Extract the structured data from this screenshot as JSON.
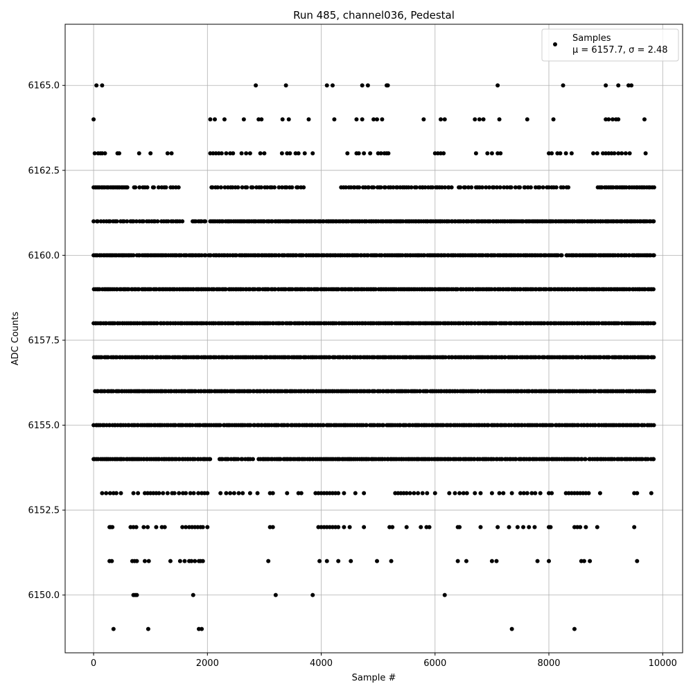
{
  "chart_data": {
    "type": "scatter",
    "title": "Run 485, channel036, Pedestal",
    "xlabel": "Sample #",
    "ylabel": "ADC Counts",
    "xlim": [
      -500,
      10350
    ],
    "ylim": [
      6148.3,
      6166.8
    ],
    "xticks": [
      0,
      2000,
      4000,
      6000,
      8000,
      10000
    ],
    "xtick_labels": [
      "0",
      "2000",
      "4000",
      "6000",
      "8000",
      "10000"
    ],
    "yticks": [
      6150.0,
      6152.5,
      6155.0,
      6157.5,
      6160.0,
      6162.5,
      6165.0
    ],
    "ytick_labels": [
      "6150.0",
      "6152.5",
      "6155.0",
      "6157.5",
      "6160.0",
      "6162.5",
      "6165.0"
    ],
    "grid": true,
    "legend_position": "top-right",
    "legend": {
      "series_name": "Samples",
      "stats_label": "μ = 6157.7, σ = 2.48"
    },
    "color": "#000000",
    "x_range": [
      0,
      9850
    ],
    "levels": [
      {
        "y": 6165,
        "x": [
          50,
          150,
          2850,
          3380,
          4100,
          4200,
          4720,
          4820,
          5150,
          5170,
          7100,
          8250,
          9000,
          9220,
          9400,
          9450
        ]
      },
      {
        "y": 6164,
        "x": [
          0,
          2050,
          2130,
          2300,
          2640,
          2900,
          2950,
          3320,
          3430,
          3780,
          4230,
          4620,
          4720,
          4920,
          4980,
          5070,
          5800,
          6100,
          6170,
          6700,
          6780,
          6850,
          7130,
          7620,
          8080,
          9000,
          9050,
          9120,
          9180,
          9220,
          9680
        ]
      },
      {
        "y": 6163,
        "x": [
          20,
          80,
          120,
          150,
          200,
          420,
          450,
          800,
          1000,
          1300,
          1370,
          2050,
          2100,
          2150,
          2200,
          2250,
          2330,
          2400,
          2450,
          2600,
          2680,
          2750,
          2930,
          3000,
          3310,
          3400,
          3450,
          3550,
          3600,
          3710,
          3850,
          4460,
          4620,
          4660,
          4750,
          4860,
          5000,
          5050,
          5110,
          5150,
          5180,
          6000,
          6050,
          6100,
          6150,
          6720,
          6920,
          7000,
          7100,
          7150,
          8000,
          8050,
          8150,
          8200,
          8300,
          8400,
          8780,
          8850,
          8950,
          9000,
          9050,
          9100,
          9150,
          9220,
          9280,
          9350,
          9420,
          9700
        ]
      },
      {
        "y": 6162,
        "seq": [
          [
            0,
            600,
            28
          ],
          [
            700,
            1500,
            16
          ],
          [
            2050,
            3700,
            34
          ],
          [
            4350,
            6300,
            48
          ],
          [
            6400,
            8350,
            40
          ],
          [
            8850,
            9850,
            32
          ]
        ]
      },
      {
        "y": 6161,
        "seq": [
          [
            0,
            1560,
            38
          ],
          [
            1740,
            1970,
            8
          ],
          [
            2050,
            9850,
            270
          ]
        ]
      },
      {
        "y": 6160,
        "seq": [
          [
            0,
            700,
            30
          ],
          [
            760,
            1900,
            40
          ],
          [
            1950,
            8230,
            210
          ],
          [
            8300,
            9850,
            56
          ]
        ]
      },
      {
        "y": 6159,
        "seq": [
          [
            0,
            9850,
            330
          ]
        ]
      },
      {
        "y": 6158,
        "seq": [
          [
            0,
            9850,
            340
          ]
        ]
      },
      {
        "y": 6157,
        "seq": [
          [
            0,
            9850,
            330
          ]
        ]
      },
      {
        "y": 6156,
        "seq": [
          [
            20,
            9850,
            320
          ]
        ]
      },
      {
        "y": 6155,
        "seq": [
          [
            0,
            9850,
            300
          ]
        ]
      },
      {
        "y": 6154,
        "seq": [
          [
            0,
            2060,
            70
          ],
          [
            2200,
            2800,
            18
          ],
          [
            2900,
            8650,
            190
          ],
          [
            8700,
            9850,
            36
          ]
        ]
      },
      {
        "y": 6153,
        "x": [
          150,
          220,
          290,
          350,
          400,
          480,
          700,
          780,
          900,
          950,
          1000,
          1050,
          1100,
          1150,
          1220,
          1300,
          1380,
          1420,
          1500,
          1570,
          1620,
          1700,
          1760,
          1840,
          1900,
          1950,
          2000,
          2230,
          2330,
          2400,
          2470,
          2550,
          2620,
          2750,
          2880,
          3100,
          3150,
          3400,
          3600,
          3650,
          3900,
          3950,
          4000,
          4050,
          4100,
          4150,
          4200,
          4250,
          4300,
          4400,
          4600,
          4750,
          5300,
          5350,
          5400,
          5450,
          5500,
          5560,
          5630,
          5700,
          5780,
          5860,
          6000,
          6250,
          6350,
          6430,
          6500,
          6560,
          6700,
          6800,
          7000,
          7130,
          7200,
          7350,
          7500,
          7560,
          7620,
          7700,
          7760,
          7850,
          8000,
          8050,
          8300,
          8350,
          8400,
          8450,
          8500,
          8550,
          8600,
          8650,
          8700,
          8900,
          9500,
          9550,
          9800
        ]
      },
      {
        "y": 6152,
        "x": [
          280,
          300,
          330,
          650,
          700,
          750,
          880,
          950,
          1100,
          1200,
          1250,
          1560,
          1620,
          1680,
          1730,
          1780,
          1830,
          1880,
          1920,
          2000,
          3100,
          3150,
          3950,
          4000,
          4050,
          4100,
          4150,
          4200,
          4250,
          4300,
          4400,
          4500,
          4750,
          5200,
          5250,
          5500,
          5750,
          5850,
          5900,
          6400,
          6430,
          6800,
          7100,
          7300,
          7450,
          7550,
          7650,
          7750,
          8000,
          8030,
          8450,
          8500,
          8550,
          8650,
          8850,
          9500
        ]
      },
      {
        "y": 6151,
        "x": [
          280,
          320,
          680,
          720,
          760,
          900,
          970,
          1350,
          1520,
          1600,
          1680,
          1720,
          1780,
          1850,
          1880,
          1920,
          3070,
          3970,
          4100,
          4300,
          4520,
          4980,
          5230,
          6400,
          6550,
          7000,
          7080,
          7800,
          8000,
          8570,
          8620,
          8720,
          9550
        ]
      },
      {
        "y": 6150,
        "x": [
          700,
          730,
          760,
          1750,
          3200,
          3850,
          6170
        ]
      },
      {
        "y": 6149,
        "x": [
          350,
          960,
          1850,
          1900,
          7350,
          8450
        ]
      }
    ]
  }
}
